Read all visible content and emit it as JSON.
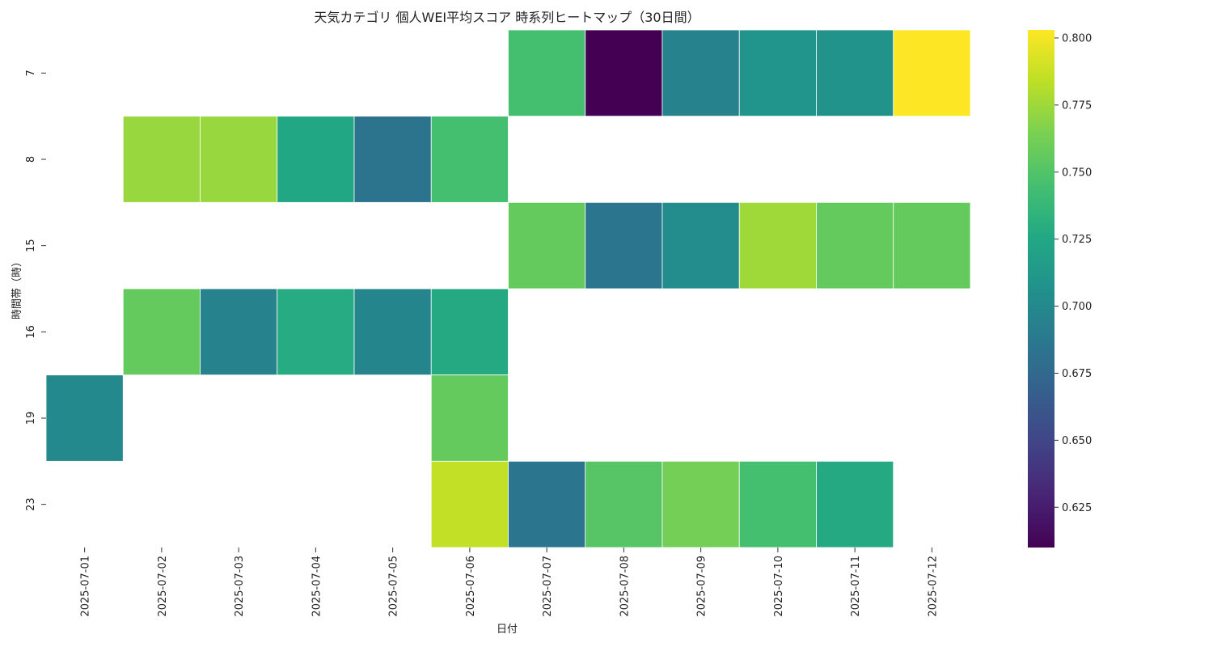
{
  "chart_data": {
    "type": "heatmap",
    "title": "天気カテゴリ 個人WEI平均スコア 時系列ヒートマップ（30日間）",
    "xlabel": "日付",
    "ylabel": "時間帯（時）",
    "x_categories": [
      "2025-07-01",
      "2025-07-02",
      "2025-07-03",
      "2025-07-04",
      "2025-07-05",
      "2025-07-06",
      "2025-07-07",
      "2025-07-08",
      "2025-07-09",
      "2025-07-10",
      "2025-07-11",
      "2025-07-12"
    ],
    "y_categories": [
      "7",
      "8",
      "15",
      "16",
      "19",
      "23"
    ],
    "values": [
      [
        null,
        null,
        null,
        null,
        null,
        null,
        0.745,
        0.61,
        0.695,
        0.71,
        0.708,
        0.803
      ],
      [
        null,
        0.773,
        0.773,
        0.725,
        0.683,
        0.745,
        null,
        null,
        null,
        null,
        null,
        null
      ],
      [
        null,
        null,
        null,
        null,
        null,
        null,
        0.757,
        0.685,
        0.703,
        0.775,
        0.757,
        0.757
      ],
      [
        null,
        0.757,
        0.696,
        0.728,
        0.697,
        0.727,
        null,
        null,
        null,
        null,
        null,
        null
      ],
      [
        0.7,
        null,
        null,
        null,
        null,
        0.757,
        null,
        null,
        null,
        null,
        null,
        null
      ],
      [
        null,
        null,
        null,
        null,
        null,
        0.785,
        0.685,
        0.752,
        0.762,
        0.745,
        0.727,
        null
      ]
    ],
    "colormap": "viridis",
    "colorbar": {
      "vmin": 0.61,
      "vmax": 0.803,
      "ticks": [
        0.625,
        0.65,
        0.675,
        0.7,
        0.725,
        0.75,
        0.775,
        0.8
      ],
      "tick_labels": [
        "0.625",
        "0.650",
        "0.675",
        "0.700",
        "0.725",
        "0.750",
        "0.775",
        "0.800"
      ]
    },
    "cell_border_color": "#ffffff",
    "grid": false
  }
}
